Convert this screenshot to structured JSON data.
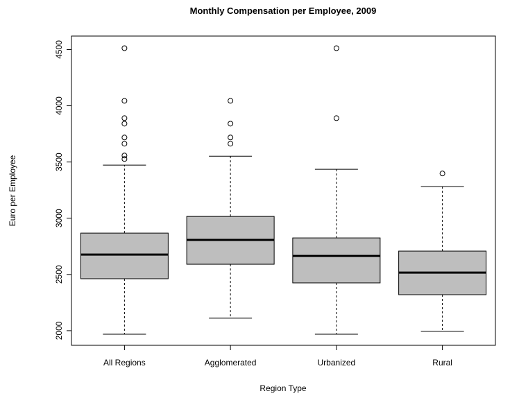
{
  "chart_data": {
    "type": "box",
    "title": "Monthly Compensation per Employee, 2009",
    "xlabel": "Region Type",
    "ylabel": "Euro per Employee",
    "categories": [
      "All Regions",
      "Agglomerated",
      "Urbanized",
      "Rural"
    ],
    "color": "#bebebe",
    "boxes": [
      {
        "min": 1969,
        "q1": 2462,
        "median": 2677,
        "q3": 2868,
        "max": 3472,
        "outliers": [
          4512,
          4044,
          3890,
          3841,
          3718,
          3663,
          3558,
          3527
        ]
      },
      {
        "min": 2111,
        "q1": 2591,
        "median": 2807,
        "q3": 3016,
        "max": 3552,
        "outliers": [
          4044,
          3841,
          3718,
          3663
        ]
      },
      {
        "min": 1969,
        "q1": 2425,
        "median": 2665,
        "q3": 2825,
        "max": 3435,
        "outliers": [
          4512,
          3890
        ]
      },
      {
        "min": 1994,
        "q1": 2320,
        "median": 2517,
        "q3": 2708,
        "max": 3281,
        "outliers": [
          3398
        ]
      }
    ],
    "ylim": [
      1870,
      4620
    ],
    "yticks": [
      2000,
      2500,
      3000,
      3500,
      4000,
      4500
    ]
  }
}
